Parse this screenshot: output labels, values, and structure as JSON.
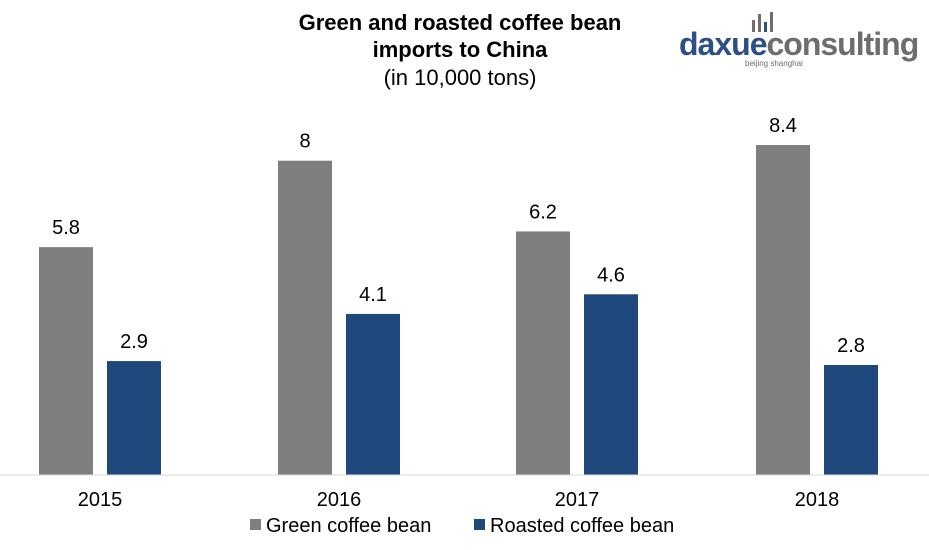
{
  "title_line1": "Green and roasted coffee bean",
  "title_line2": "imports to China",
  "subtitle": "(in 10,000 tons)",
  "logo": {
    "brand_part1": "daxue",
    "brand_part2": "consulting",
    "tagline": "beijing shanghai",
    "color_part1": "#2d4f86",
    "color_part2": "#6d6d6d",
    "icon_name": "bar-chart-logo-icon"
  },
  "chart_data": {
    "type": "bar",
    "title": "Green and roasted coffee bean imports to China",
    "subtitle": "(in 10,000 tons)",
    "categories": [
      "2015",
      "2016",
      "2017",
      "2018"
    ],
    "series": [
      {
        "name": "Green coffee bean",
        "values": [
          5.8,
          8,
          6.2,
          8.4
        ],
        "color": "#7f7f7f"
      },
      {
        "name": "Roasted coffee bean",
        "values": [
          2.9,
          4.1,
          4.6,
          2.8
        ],
        "color": "#1f497d"
      }
    ],
    "ylim": [
      0,
      8.4
    ],
    "grid": false,
    "legend_position": "bottom",
    "data_labels": true
  }
}
